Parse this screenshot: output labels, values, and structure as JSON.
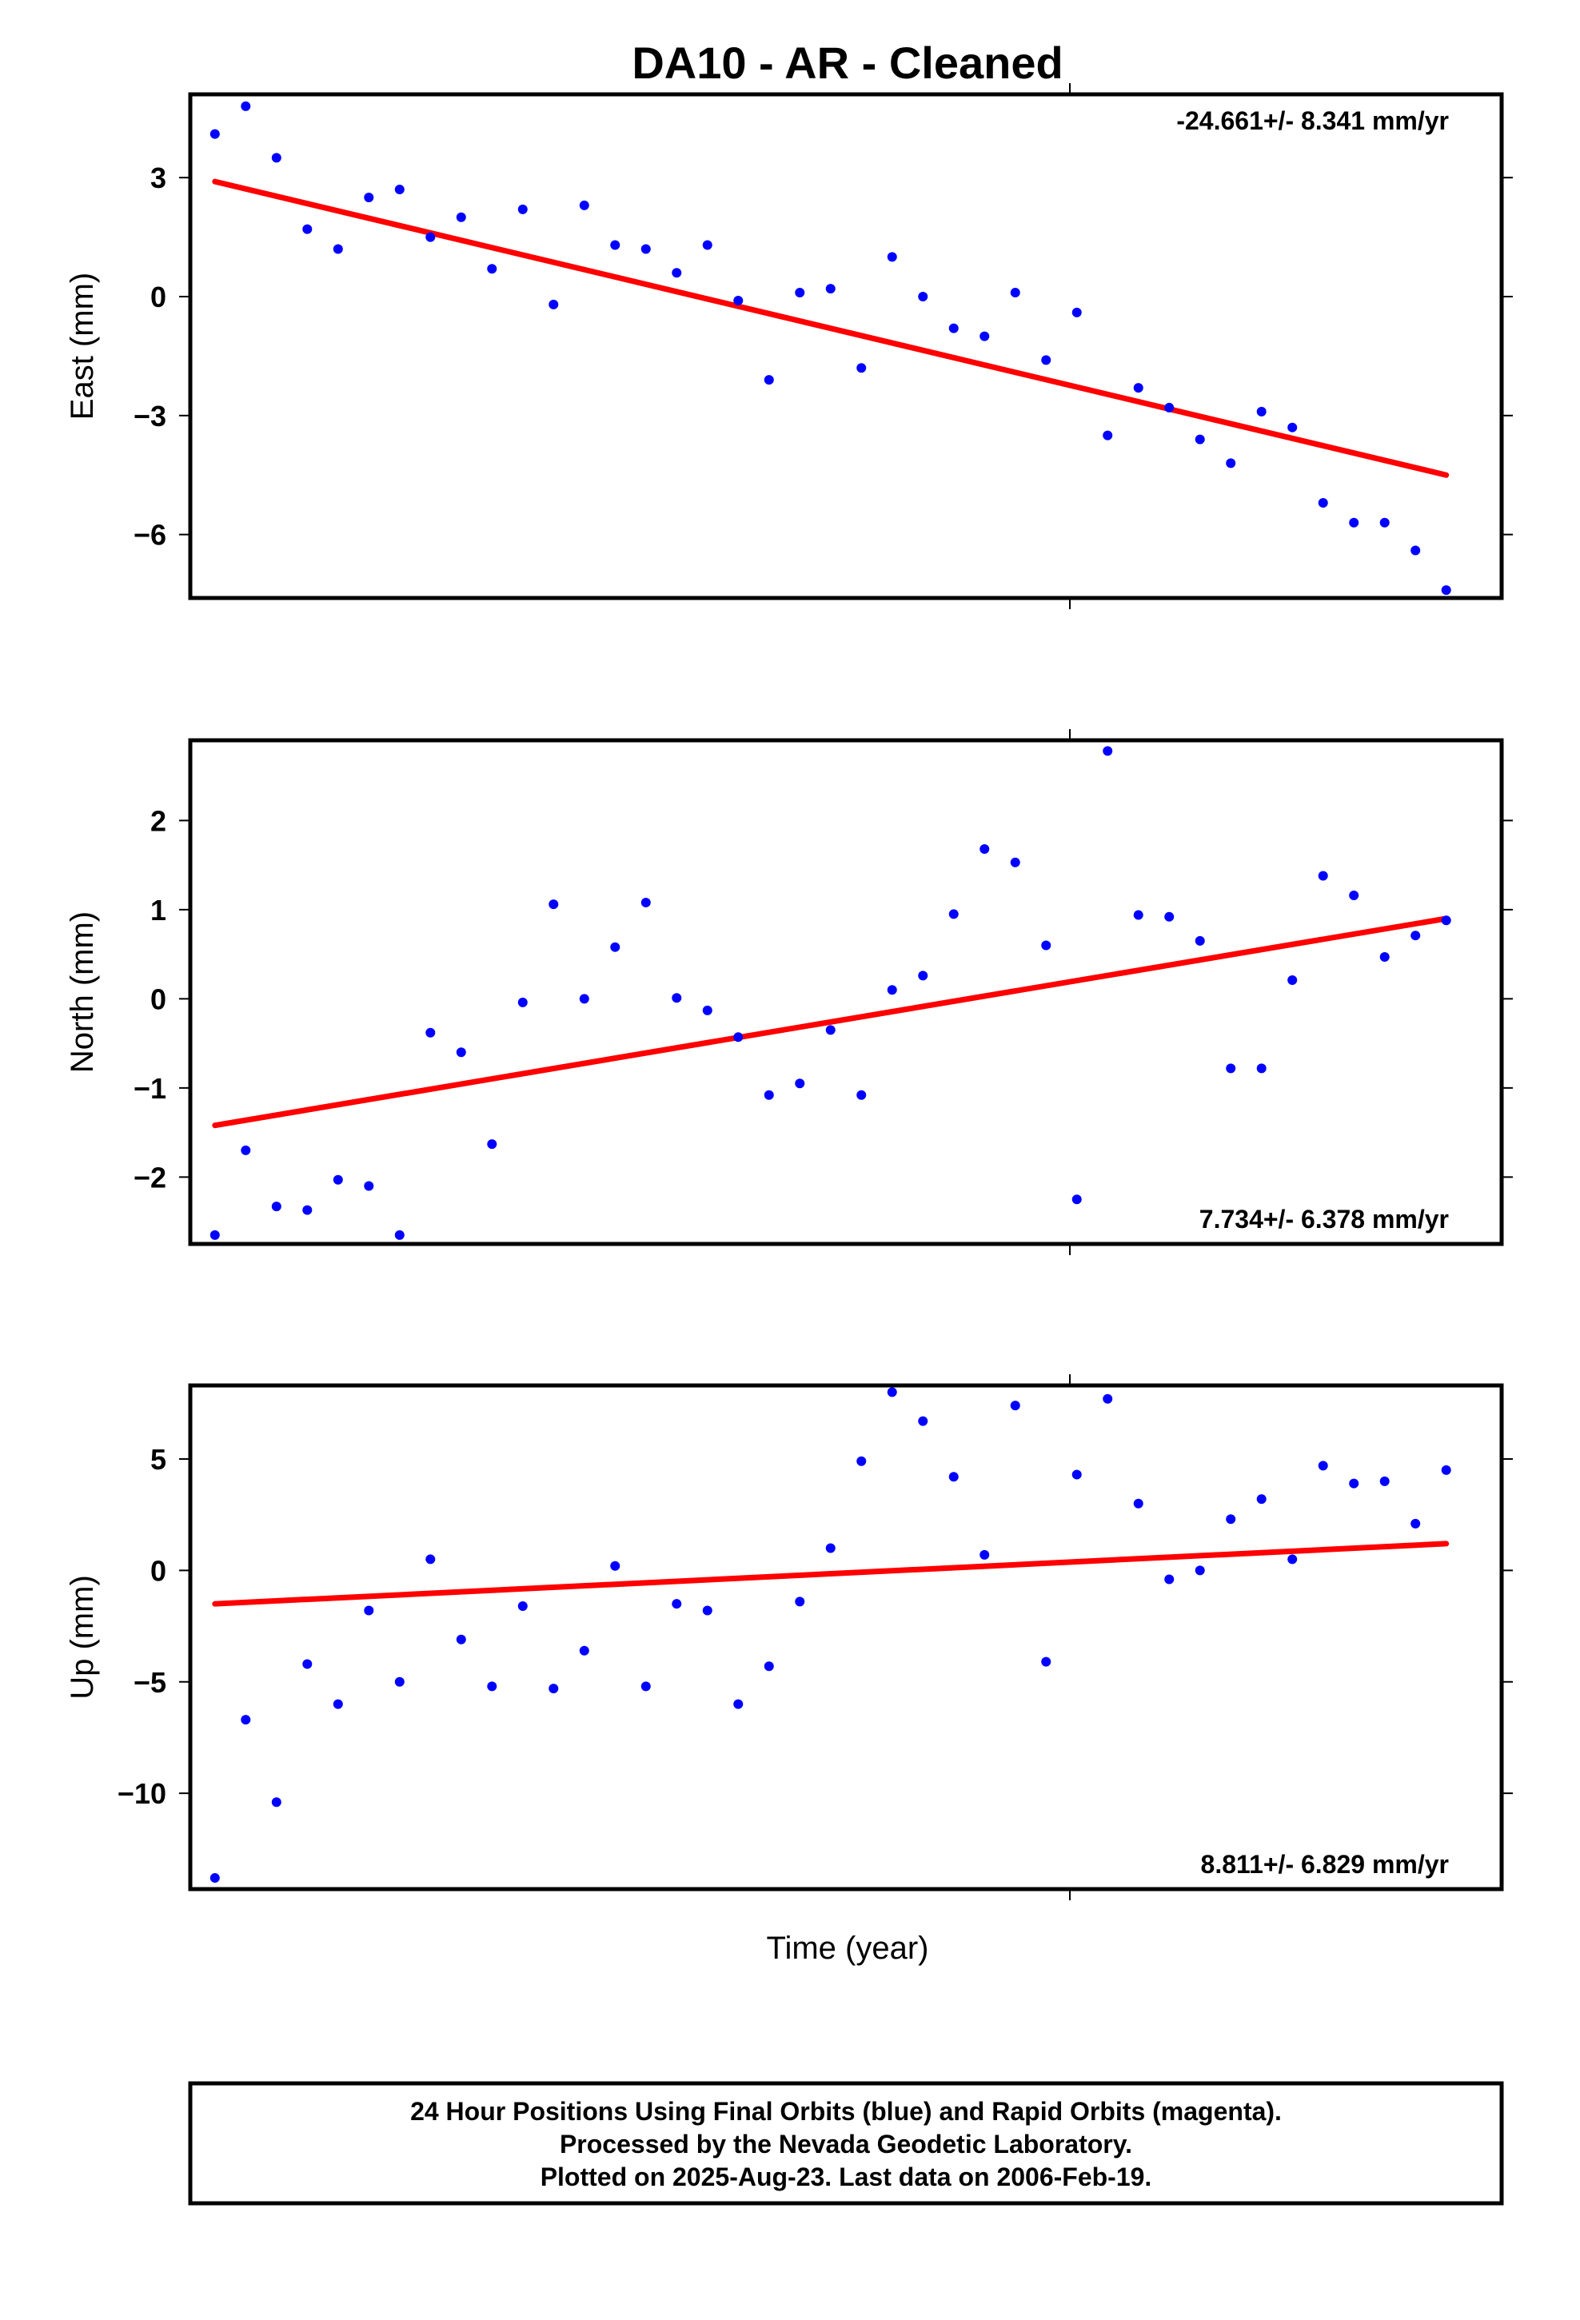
{
  "chart_data": {
    "type": "scatter",
    "title": "DA10  - AR - Cleaned",
    "xlabel": "Time (year)",
    "x": [
      1,
      2,
      3,
      4,
      5,
      6,
      7,
      8,
      9,
      10,
      11,
      12,
      13,
      14,
      15,
      16,
      17,
      18,
      19,
      20,
      21,
      22,
      23,
      24,
      25,
      26,
      27,
      28,
      29,
      30,
      31,
      32,
      33,
      34,
      35,
      36,
      37,
      38,
      39,
      40,
      41
    ],
    "xlim": [
      0.2,
      42.8
    ],
    "panels": [
      {
        "name": "east",
        "ylabel": "East (mm)",
        "ylim": [
          -7.6,
          5.1
        ],
        "yticks": [
          3,
          0,
          -3,
          -6
        ],
        "ytick_labels": [
          "3",
          "0",
          "−3",
          "−6"
        ],
        "rate": "-24.661+/- 8.341 mm/yr",
        "rate_position": "top-right",
        "values": [
          4.1,
          4.8,
          3.5,
          1.7,
          1.2,
          2.5,
          2.7,
          1.5,
          2.0,
          0.7,
          2.2,
          -0.2,
          2.3,
          1.3,
          1.2,
          0.6,
          1.3,
          -0.1,
          -2.1,
          0.1,
          0.2,
          -1.8,
          1.0,
          0.0,
          -0.8,
          -1.0,
          0.1,
          -1.6,
          -0.4,
          -3.5,
          -2.3,
          -2.8,
          -3.6,
          -4.2,
          -2.9,
          -3.3,
          -5.2,
          -5.7,
          -5.7,
          -6.4,
          -7.4
        ],
        "trend": [
          2.9,
          -4.5
        ]
      },
      {
        "name": "north",
        "ylabel": "North (mm)",
        "ylim": [
          -2.75,
          2.9
        ],
        "yticks": [
          2,
          1,
          0,
          -1,
          -2
        ],
        "ytick_labels": [
          "2",
          "1",
          "0",
          "−1",
          "−2"
        ],
        "rate": "7.734+/- 6.378 mm/yr",
        "rate_position": "bottom-right",
        "values": [
          -2.65,
          -1.7,
          -2.33,
          -2.37,
          -2.03,
          -2.1,
          -2.65,
          -0.38,
          -0.6,
          -1.63,
          -0.04,
          1.06,
          0.0,
          0.58,
          1.08,
          0.01,
          -0.13,
          -0.43,
          -1.08,
          -0.95,
          -0.35,
          -1.08,
          0.1,
          0.26,
          0.95,
          1.68,
          1.53,
          0.6,
          -2.25,
          2.78,
          0.94,
          0.92,
          0.65,
          -0.78,
          -0.78,
          0.21,
          1.38,
          1.16,
          0.47,
          0.71,
          0.88
        ],
        "trend": [
          -1.42,
          0.9
        ]
      },
      {
        "name": "up",
        "ylabel": "Up (mm)",
        "ylim": [
          -14.3,
          8.3
        ],
        "yticks": [
          5,
          0,
          -5,
          -10
        ],
        "ytick_labels": [
          "5",
          "0",
          "−5",
          "−10"
        ],
        "rate": "8.811+/- 6.829 mm/yr",
        "rate_position": "bottom-right",
        "values": [
          -13.8,
          -6.7,
          -10.4,
          -4.2,
          -6.0,
          -1.8,
          -5.0,
          0.5,
          -3.1,
          -5.2,
          -1.6,
          -5.3,
          -3.6,
          0.2,
          -5.2,
          -1.5,
          -1.8,
          -6.0,
          -4.3,
          -1.4,
          1.0,
          4.9,
          8.0,
          6.7,
          4.2,
          0.7,
          7.4,
          -4.1,
          4.3,
          7.7,
          3.0,
          -0.4,
          0.0,
          2.3,
          3.2,
          0.5,
          4.7,
          3.9,
          4.0,
          2.1,
          4.5
        ],
        "trend": [
          -1.5,
          1.2
        ]
      }
    ],
    "marker_color": "#0000ff",
    "trend_color": "#ff0000",
    "grid": false
  },
  "footer": {
    "lines": [
      "24 Hour Positions Using Final Orbits (blue) and Rapid Orbits (magenta).",
      "Processed by the Nevada Geodetic Laboratory.",
      "Plotted on 2025-Aug-23. Last data on 2006-Feb-19."
    ]
  }
}
